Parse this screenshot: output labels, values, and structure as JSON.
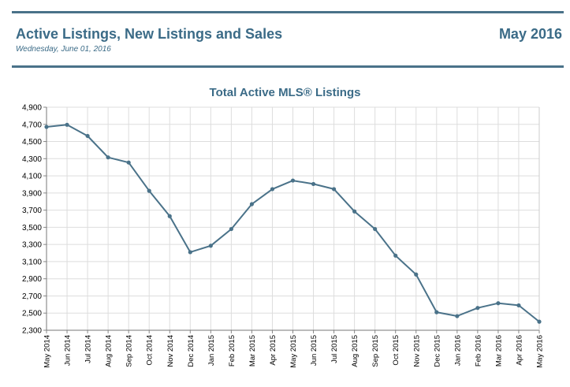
{
  "header": {
    "title": "Active Listings, New Listings and Sales",
    "period": "May 2016",
    "date": "Wednesday, June 01, 2016"
  },
  "colors": {
    "accent": "#3b6b87",
    "line": "#4a7289",
    "grid": "#dddddd"
  },
  "chart_data": {
    "type": "line",
    "title": "Total Active MLS® Listings",
    "xlabel": "",
    "ylabel": "",
    "ylim": [
      2300,
      4900
    ],
    "yticks": [
      2300,
      2500,
      2700,
      2900,
      3100,
      3300,
      3500,
      3700,
      3900,
      4100,
      4300,
      4500,
      4700,
      4900
    ],
    "ytick_labels": [
      "2,300",
      "2,500",
      "2,700",
      "2,900",
      "3,100",
      "3,300",
      "3,500",
      "3,700",
      "3,900",
      "4,100",
      "4,300",
      "4,500",
      "4,700",
      "4,900"
    ],
    "grid": true,
    "categories": [
      "May 2014",
      "Jun 2014",
      "Jul 2014",
      "Aug 2014",
      "Sep 2014",
      "Oct 2014",
      "Nov 2014",
      "Dec 2014",
      "Jan 2015",
      "Feb 2015",
      "Mar 2015",
      "Apr 2015",
      "May 2015",
      "Jun 2015",
      "Jul 2015",
      "Aug 2015",
      "Sep 2015",
      "Oct 2015",
      "Nov 2015",
      "Dec 2015",
      "Jan 2016",
      "Feb 2016",
      "Mar 2016",
      "Apr 2016",
      "May 2016"
    ],
    "series": [
      {
        "values": [
          4670,
          4695,
          4565,
          4315,
          4255,
          3925,
          3630,
          3210,
          3285,
          3480,
          3770,
          3945,
          4045,
          4005,
          3945,
          3685,
          3480,
          3170,
          2950,
          2510,
          2465,
          2560,
          2615,
          2590,
          2400
        ]
      }
    ]
  }
}
